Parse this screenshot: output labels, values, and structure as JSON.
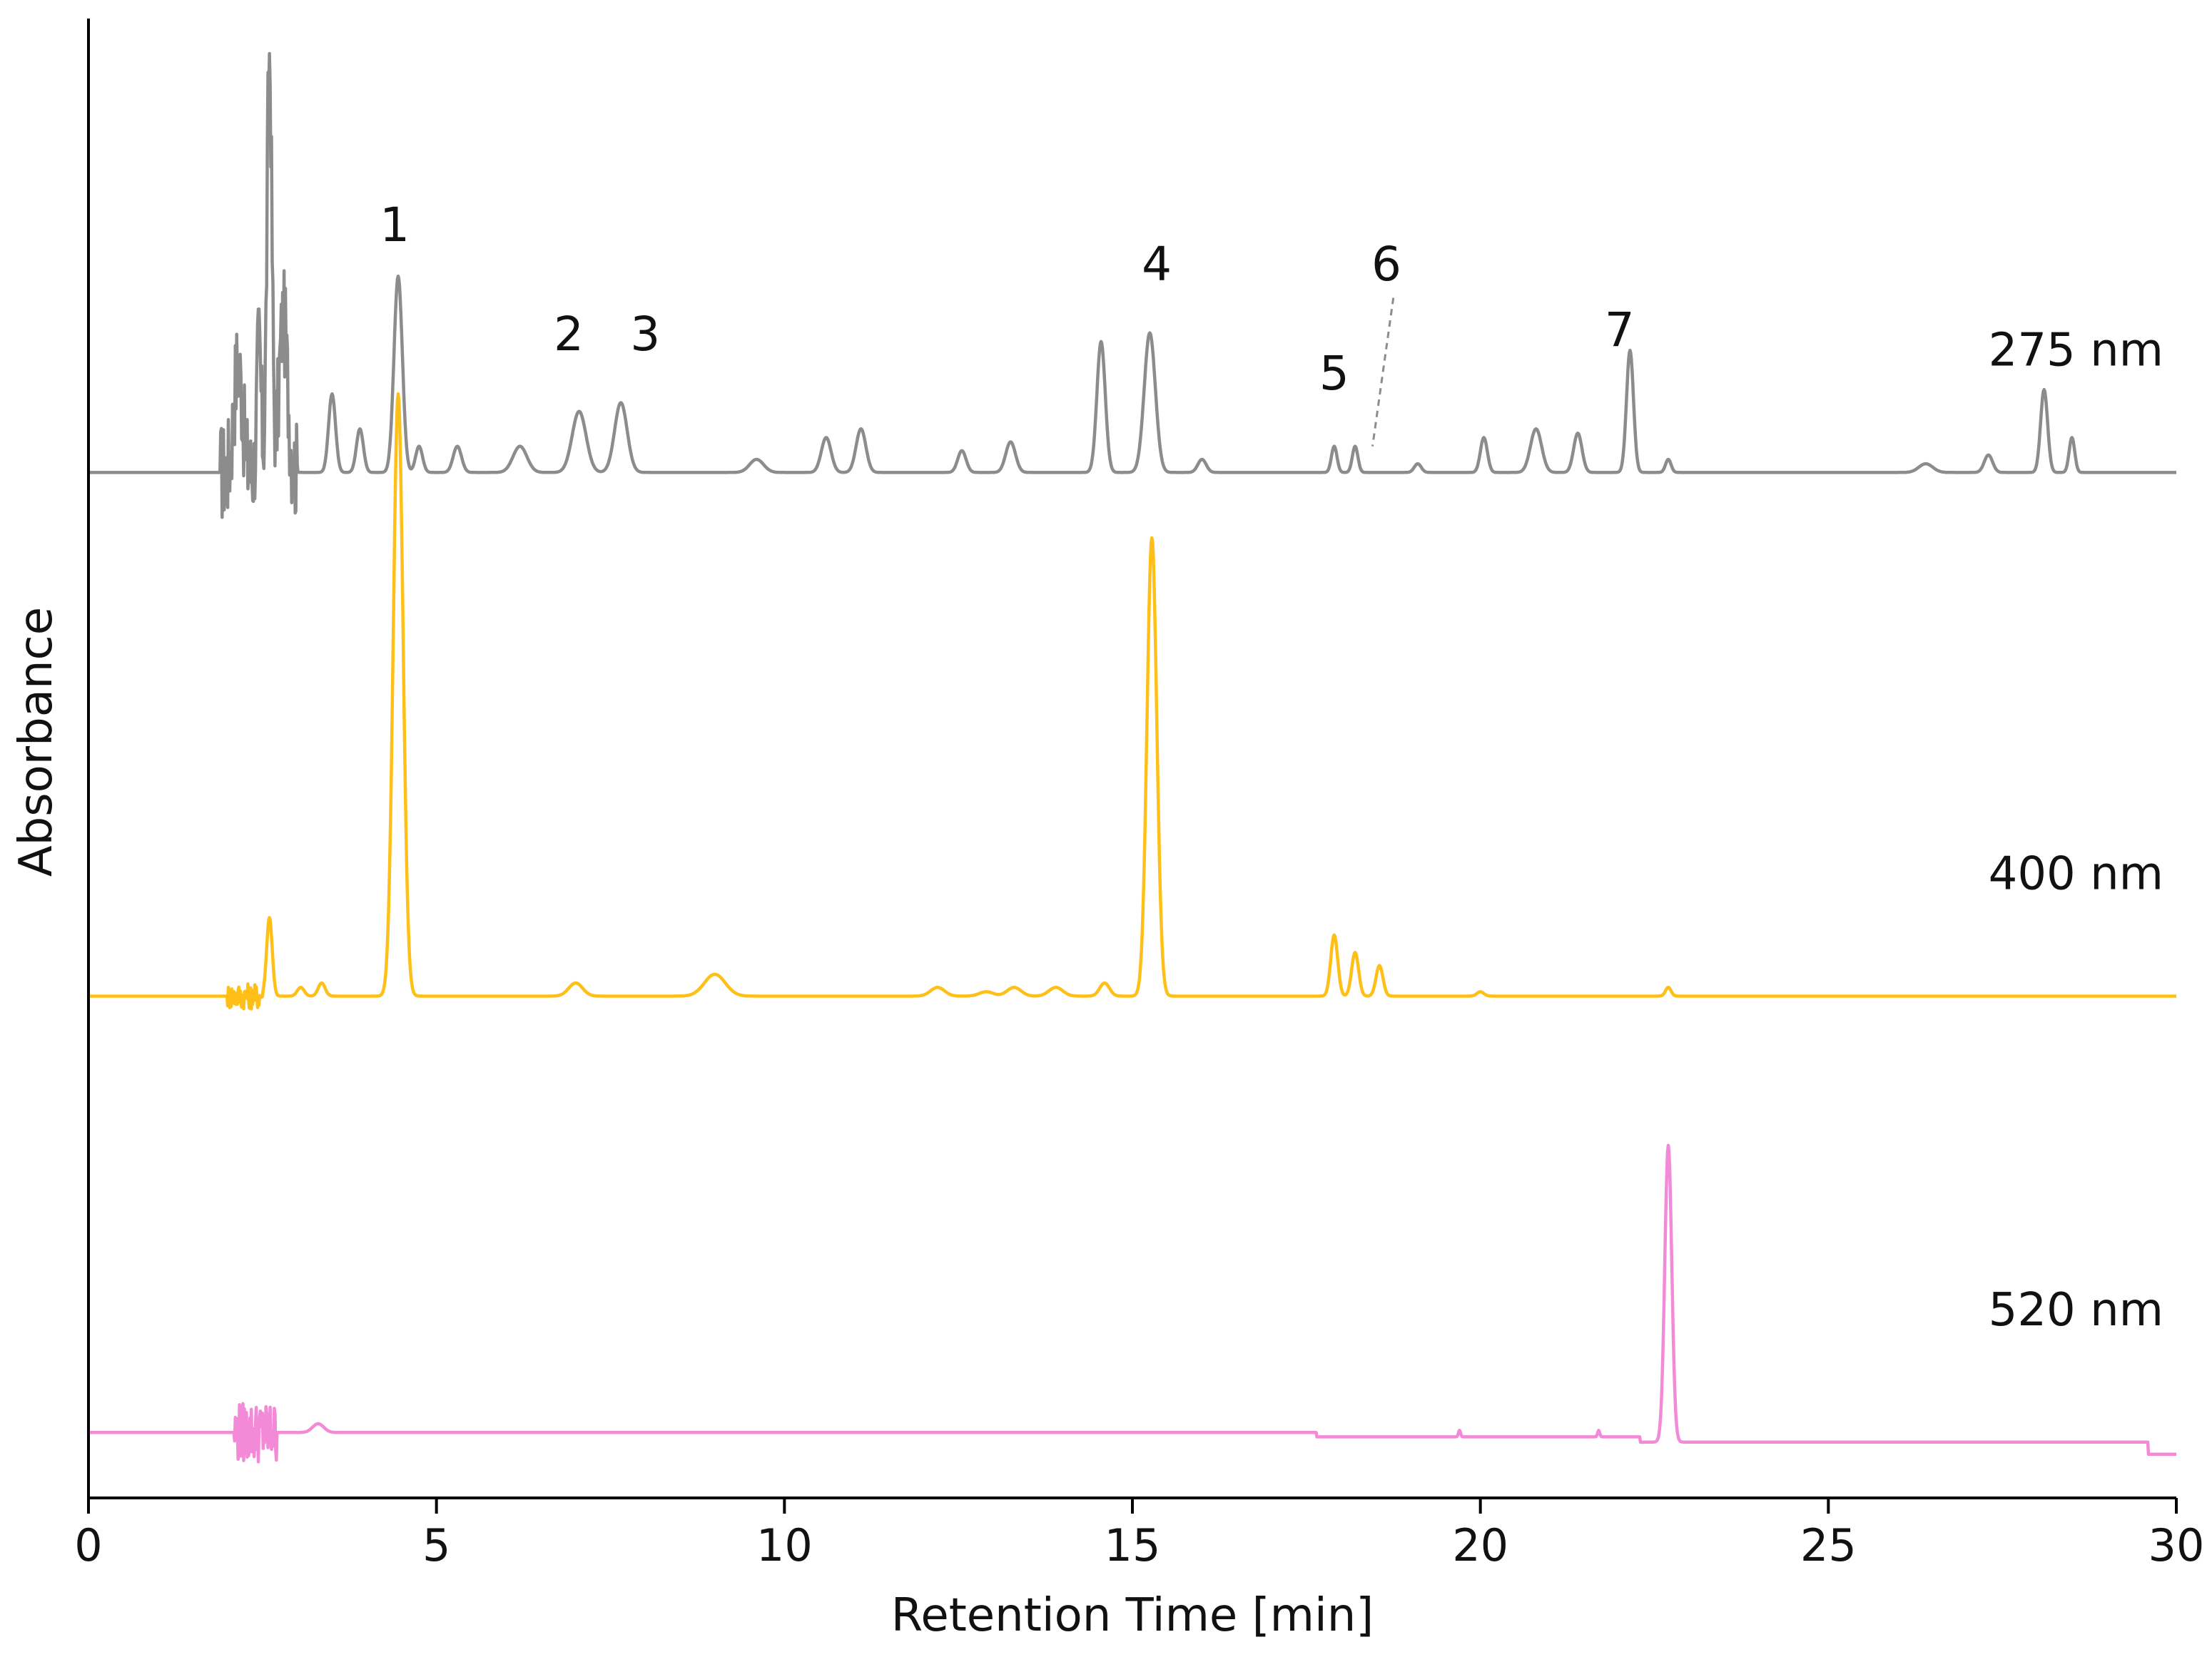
{
  "chart_data": {
    "type": "line",
    "title": "",
    "xlabel": "Retention Time [min]",
    "ylabel": "Absorbance",
    "xlim": [
      0,
      30
    ],
    "xticks": [
      0,
      5,
      10,
      15,
      20,
      25,
      30
    ],
    "ylim": [
      -0.15,
      3.25
    ],
    "grid": false,
    "legend": "none",
    "series": [
      {
        "name": "275 nm",
        "color": "#8c8c8c",
        "baseline": 2.2,
        "noise": {
          "start": 1.9,
          "end": 3.0,
          "amplitude": 0.12
        },
        "peaks": [
          [
            2.15,
            0.25,
            0.06
          ],
          [
            2.45,
            0.3,
            0.03
          ],
          [
            2.6,
            0.95,
            0.035
          ],
          [
            2.8,
            0.35,
            0.06
          ],
          [
            3.5,
            0.18,
            0.05
          ],
          [
            3.9,
            0.1,
            0.05
          ],
          [
            4.45,
            0.45,
            0.06
          ],
          [
            4.75,
            0.06,
            0.05
          ],
          [
            5.3,
            0.06,
            0.06
          ],
          [
            6.2,
            0.06,
            0.1
          ],
          [
            7.05,
            0.14,
            0.1
          ],
          [
            7.65,
            0.16,
            0.09
          ],
          [
            9.6,
            0.03,
            0.1
          ],
          [
            10.6,
            0.08,
            0.07
          ],
          [
            11.1,
            0.1,
            0.07
          ],
          [
            12.55,
            0.05,
            0.06
          ],
          [
            13.25,
            0.07,
            0.07
          ],
          [
            14.55,
            0.3,
            0.06
          ],
          [
            15.25,
            0.32,
            0.08
          ],
          [
            16.0,
            0.03,
            0.06
          ],
          [
            17.9,
            0.06,
            0.04
          ],
          [
            18.2,
            0.06,
            0.04
          ],
          [
            19.1,
            0.02,
            0.05
          ],
          [
            20.05,
            0.08,
            0.05
          ],
          [
            20.8,
            0.1,
            0.08
          ],
          [
            21.4,
            0.09,
            0.06
          ],
          [
            22.15,
            0.28,
            0.05
          ],
          [
            22.7,
            0.03,
            0.04
          ],
          [
            26.4,
            0.02,
            0.1
          ],
          [
            27.3,
            0.04,
            0.06
          ],
          [
            28.1,
            0.19,
            0.05
          ],
          [
            28.5,
            0.08,
            0.04
          ]
        ]
      },
      {
        "name": "400 nm",
        "color": "#fec018",
        "baseline": 1.0,
        "noise": {
          "start": 2.0,
          "end": 2.5,
          "amplitude": 0.03
        },
        "peaks": [
          [
            2.6,
            0.18,
            0.04
          ],
          [
            3.05,
            0.02,
            0.05
          ],
          [
            3.35,
            0.03,
            0.05
          ],
          [
            4.45,
            1.38,
            0.07
          ],
          [
            7.0,
            0.03,
            0.1
          ],
          [
            9.0,
            0.05,
            0.15
          ],
          [
            12.2,
            0.02,
            0.1
          ],
          [
            12.9,
            0.01,
            0.1
          ],
          [
            13.3,
            0.02,
            0.1
          ],
          [
            13.9,
            0.02,
            0.1
          ],
          [
            14.6,
            0.03,
            0.07
          ],
          [
            15.28,
            1.05,
            0.07
          ],
          [
            17.9,
            0.14,
            0.05
          ],
          [
            18.2,
            0.1,
            0.05
          ],
          [
            18.55,
            0.07,
            0.05
          ],
          [
            20.0,
            0.01,
            0.05
          ],
          [
            22.7,
            0.02,
            0.04
          ]
        ]
      },
      {
        "name": "520 nm",
        "color": "#f38ad8",
        "baseline": 0.0,
        "steps": [
          [
            17.65,
            -0.01
          ],
          [
            22.3,
            -0.012
          ],
          [
            29.6,
            -0.028
          ]
        ],
        "noise": {
          "start": 2.1,
          "end": 2.7,
          "amplitude": 0.07
        },
        "peaks": [
          [
            3.3,
            0.02,
            0.08
          ],
          [
            19.7,
            0.015,
            0.015
          ],
          [
            21.7,
            0.015,
            0.015
          ],
          [
            22.7,
            0.68,
            0.05
          ]
        ]
      }
    ],
    "annotations": [
      {
        "text": "1",
        "x": 4.4,
        "y": 2.73
      },
      {
        "text": "2",
        "x": 6.9,
        "y": 2.48
      },
      {
        "text": "3",
        "x": 8.0,
        "y": 2.48
      },
      {
        "text": "4",
        "x": 15.35,
        "y": 2.64
      },
      {
        "text": "5",
        "x": 17.9,
        "y": 2.39
      },
      {
        "text": "6",
        "x": 18.65,
        "y": 2.64
      },
      {
        "text": "7",
        "x": 22.0,
        "y": 2.49
      }
    ]
  }
}
